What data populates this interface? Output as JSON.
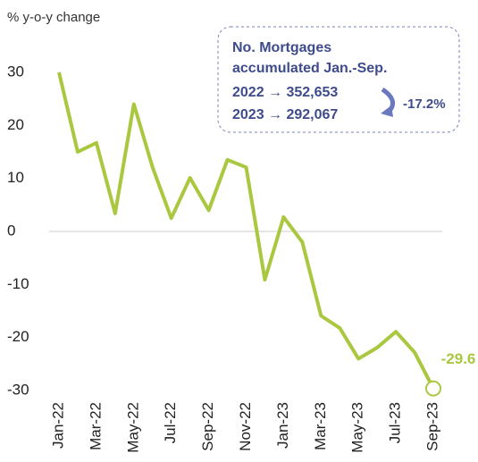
{
  "chart_data": {
    "type": "line",
    "y_label": "% y-o-y change",
    "categories": [
      "Jan-22",
      null,
      "Mar-22",
      null,
      "May-22",
      null,
      "Jul-22",
      null,
      "Sep-22",
      null,
      "Nov-22",
      null,
      "Jan-23",
      null,
      "Mar-23",
      null,
      "May-23",
      null,
      "Jul-23",
      null,
      "Sep-23"
    ],
    "series": [
      {
        "name": "No. Mortgages y-o-y",
        "color": "#a9c840",
        "values": [
          30,
          15,
          16.7,
          3.4,
          24,
          12.1,
          2.5,
          10.1,
          4.0,
          13.5,
          12.1,
          -9.1,
          2.7,
          -2.0,
          -15.9,
          -18.2,
          -24,
          -21.9,
          -18.9,
          -22.8,
          -29.6
        ]
      }
    ],
    "ylim": [
      -31,
      31
    ],
    "yticks": [
      30,
      20,
      10,
      0,
      -10,
      -20,
      -30
    ],
    "annotation": {
      "lines": [
        "No. Mortgages",
        "accumulated Jan.-Sep.",
        "2022 → 352,653",
        "2023 → 292,067"
      ],
      "change": "-17.2%"
    }
  }
}
